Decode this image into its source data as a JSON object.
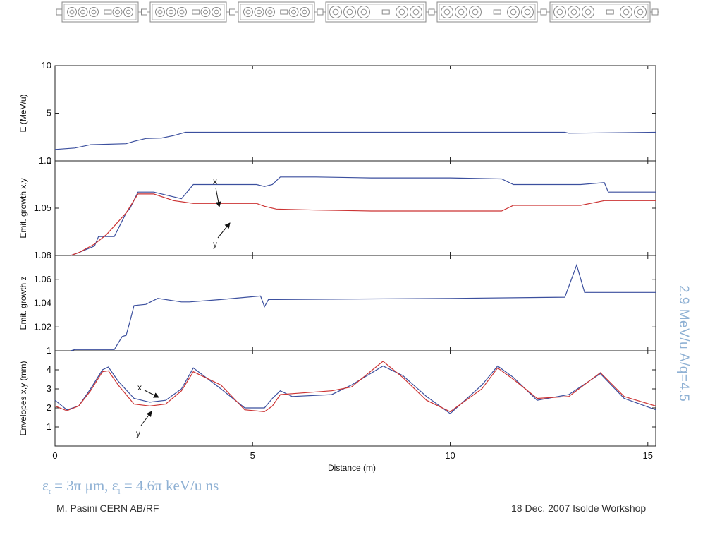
{
  "colors": {
    "blue": "#3b4f9e",
    "red": "#cc3333",
    "note": "#8fb1d4"
  },
  "lattice_cavity_groups": [
    5,
    5,
    5,
    5,
    5,
    5
  ],
  "side_note": "2.9 MeV/u A/q=4.5",
  "emittance_note": {
    "eps": "ε",
    "t_sub": "t",
    "mid1": " = 3π μm, ",
    "l_sub": "l",
    "mid2": " = 4.6π keV/u ns"
  },
  "footer": {
    "author": "M. Pasini CERN AB/RF",
    "event": "18 Dec. 2007 Isolde Workshop"
  },
  "chart_data": [
    {
      "type": "line",
      "ylabel": "E (MeV/u)",
      "ylim": [
        0,
        10
      ],
      "yticks": [
        0,
        5,
        10
      ],
      "xlim": [
        0,
        15.2
      ],
      "series": [
        {
          "color": "blue",
          "x": [
            0,
            0.5,
            0.9,
            1.8,
            2.0,
            2.3,
            2.7,
            3.0,
            3.3,
            12.9,
            13.0,
            15.2
          ],
          "y": [
            1.2,
            1.35,
            1.7,
            1.8,
            2.05,
            2.35,
            2.4,
            2.65,
            3.0,
            3.0,
            2.9,
            3.0
          ]
        }
      ]
    },
    {
      "type": "line",
      "ylabel": "Emit. growth x,y",
      "ylim": [
        1,
        1.1
      ],
      "yticks": [
        1,
        1.05,
        1.1
      ],
      "yticklabels": [
        "1",
        "1.05",
        "1.1"
      ],
      "xlim": [
        0,
        15.2
      ],
      "series": [
        {
          "name": "x",
          "color": "blue",
          "x": [
            0.4,
            0.6,
            1.0,
            1.1,
            1.4,
            1.5,
            1.8,
            1.9,
            2.1,
            2.5,
            3.0,
            3.2,
            3.5,
            5.1,
            5.3,
            5.5,
            5.7,
            6.6,
            8.0,
            10.0,
            11.3,
            11.6,
            13.3,
            13.9,
            14.0,
            15.2
          ],
          "y": [
            1.0,
            1.003,
            1.01,
            1.02,
            1.02,
            1.02,
            1.045,
            1.05,
            1.067,
            1.067,
            1.062,
            1.06,
            1.075,
            1.075,
            1.073,
            1.075,
            1.083,
            1.083,
            1.082,
            1.082,
            1.081,
            1.075,
            1.075,
            1.077,
            1.067,
            1.067
          ]
        },
        {
          "name": "y",
          "color": "red",
          "x": [
            0.4,
            0.6,
            1.0,
            1.3,
            1.8,
            2.1,
            2.5,
            3.0,
            3.5,
            5.1,
            5.3,
            5.6,
            6.6,
            8.0,
            11.3,
            11.6,
            13.3,
            13.9,
            15.2
          ],
          "y": [
            1.0,
            1.003,
            1.012,
            1.022,
            1.045,
            1.065,
            1.065,
            1.058,
            1.055,
            1.055,
            1.052,
            1.049,
            1.048,
            1.047,
            1.047,
            1.053,
            1.053,
            1.058,
            1.058
          ]
        }
      ],
      "annotations": [
        "x",
        "y"
      ]
    },
    {
      "type": "line",
      "ylabel": "Emit. growth z",
      "ylim": [
        1,
        1.08
      ],
      "yticks": [
        1,
        1.02,
        1.04,
        1.06,
        1.08
      ],
      "yticklabels": [
        "1",
        "1.02",
        "1.04",
        "1.06",
        "1.08"
      ],
      "xlim": [
        0,
        15.2
      ],
      "series": [
        {
          "color": "blue",
          "x": [
            0.4,
            0.5,
            0.6,
            1.5,
            1.7,
            1.8,
            1.9,
            2.0,
            2.3,
            2.6,
            3.2,
            3.4,
            4.2,
            5.2,
            5.3,
            5.4,
            5.6,
            10.0,
            12.9,
            13.2,
            13.4,
            15.2
          ],
          "y": [
            1.0,
            1.001,
            1.001,
            1.001,
            1.012,
            1.013,
            1.025,
            1.038,
            1.039,
            1.044,
            1.041,
            1.041,
            1.043,
            1.046,
            1.037,
            1.043,
            1.043,
            1.044,
            1.045,
            1.072,
            1.049,
            1.049
          ]
        }
      ]
    },
    {
      "type": "line",
      "ylabel": "Envelopes x,y (mm)",
      "xlabel": "Distance (m)",
      "ylim": [
        0,
        5
      ],
      "yticks": [
        1,
        2,
        3,
        4
      ],
      "xlim": [
        0,
        15.2
      ],
      "xticks": [
        0,
        5,
        10,
        15
      ],
      "series": [
        {
          "name": "x",
          "color": "blue",
          "x": [
            0,
            0.3,
            0.6,
            0.9,
            1.2,
            1.35,
            1.6,
            2.0,
            2.4,
            2.8,
            3.2,
            3.5,
            4.2,
            4.8,
            5.3,
            5.5,
            5.7,
            6.0,
            7.0,
            7.5,
            8.3,
            8.8,
            9.4,
            10.0,
            10.8,
            11.2,
            11.6,
            12.2,
            13.0,
            13.8,
            14.4,
            15.2
          ],
          "y": [
            2.4,
            1.9,
            2.1,
            3.0,
            4.0,
            4.15,
            3.4,
            2.5,
            2.3,
            2.4,
            3.0,
            4.1,
            3.0,
            2.0,
            2.0,
            2.5,
            2.9,
            2.6,
            2.7,
            3.2,
            4.2,
            3.7,
            2.6,
            1.7,
            3.2,
            4.2,
            3.6,
            2.4,
            2.7,
            3.8,
            2.5,
            1.9
          ]
        },
        {
          "name": "y",
          "color": "red",
          "x": [
            0,
            0.3,
            0.6,
            0.9,
            1.2,
            1.35,
            1.6,
            2.0,
            2.4,
            2.8,
            3.2,
            3.5,
            4.2,
            4.8,
            5.3,
            5.5,
            5.7,
            6.0,
            7.0,
            7.5,
            8.3,
            8.8,
            9.4,
            10.0,
            10.8,
            11.2,
            11.6,
            12.2,
            13.0,
            13.8,
            14.4,
            15.2
          ],
          "y": [
            2.1,
            1.85,
            2.1,
            2.9,
            3.9,
            3.95,
            3.2,
            2.2,
            2.1,
            2.2,
            2.9,
            3.9,
            3.2,
            1.9,
            1.8,
            2.1,
            2.7,
            2.75,
            2.9,
            3.1,
            4.45,
            3.6,
            2.4,
            1.8,
            3.0,
            4.1,
            3.5,
            2.5,
            2.6,
            3.85,
            2.6,
            2.1
          ]
        }
      ],
      "annotations": [
        "x",
        "y"
      ]
    }
  ]
}
